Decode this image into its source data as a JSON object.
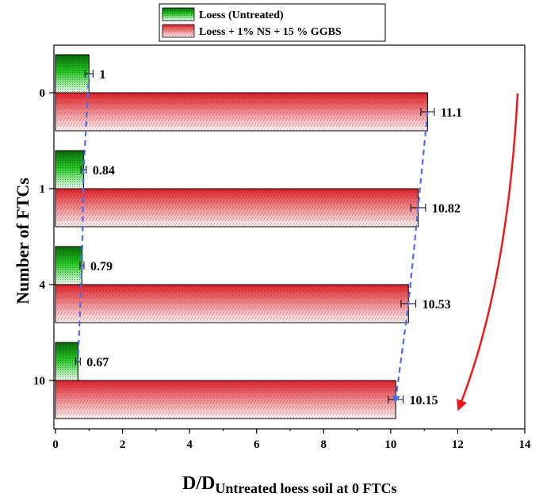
{
  "chart_data": {
    "type": "bar",
    "orientation": "horizontal",
    "categories": [
      "0",
      "1",
      "4",
      "10"
    ],
    "series": [
      {
        "name": "Loess (Untreated)",
        "values": [
          1,
          0.84,
          0.79,
          0.67
        ],
        "labels": [
          "1",
          "0.84",
          "0.79",
          "0.67"
        ],
        "error": [
          0.12,
          0.08,
          0.06,
          0.07
        ],
        "color": "#1fc01f"
      },
      {
        "name": "Loess + 1% NS + 15 % GGBS",
        "values": [
          11.1,
          10.82,
          10.53,
          10.15
        ],
        "labels": [
          "11.1",
          "10.82",
          "10.53",
          "10.15"
        ],
        "error": [
          0.2,
          0.22,
          0.22,
          0.22
        ],
        "color": "#e0282e"
      }
    ],
    "xlabel_main": "D/D",
    "xlabel_sub": "Untreated loess soil at 0 FTCs",
    "ylabel": "Number of FTCs",
    "xlim": [
      0,
      14
    ],
    "xticks": [
      0,
      2,
      4,
      6,
      8,
      10,
      12,
      14
    ],
    "grid": false,
    "legend_position": "top"
  }
}
